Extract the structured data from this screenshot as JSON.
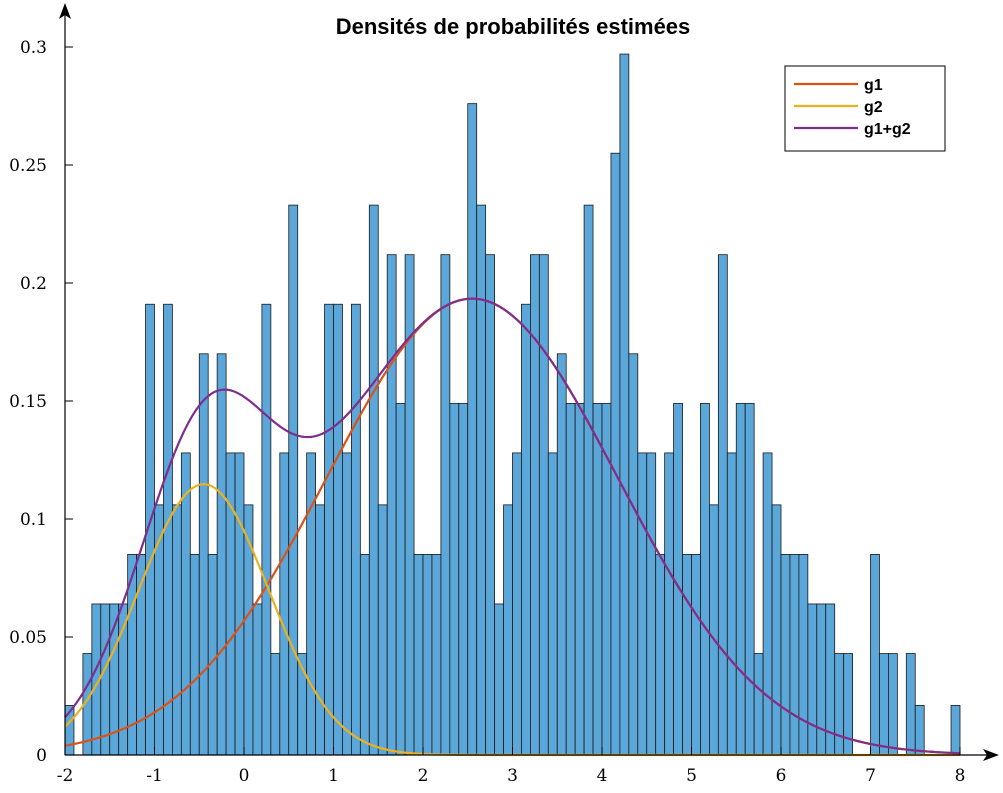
{
  "chart_data": {
    "type": "bar",
    "title": "Densités de probabilités estimées",
    "xlabel": "",
    "ylabel": "",
    "xlim": [
      -2,
      8
    ],
    "ylim": [
      0,
      0.3
    ],
    "x_ticks": [
      "-2",
      "-1",
      "0",
      "1",
      "2",
      "3",
      "4",
      "5",
      "6",
      "7",
      "8"
    ],
    "y_ticks": [
      "0",
      "0.05",
      "0.1",
      "0.15",
      "0.2",
      "0.25",
      "0.3"
    ],
    "grid": false,
    "legend_position": "top-right",
    "colors": {
      "bars": "#5ba7d9",
      "bar_edge": "#1a1a1a",
      "g1": "#d95319",
      "g2": "#edb120",
      "g1+g2": "#7e2f8e"
    },
    "histogram": {
      "bin_width": 0.1,
      "first_bin_start": -2.0,
      "densities": [
        0.021,
        0.0,
        0.043,
        0.064,
        0.064,
        0.064,
        0.064,
        0.085,
        0.085,
        0.191,
        0.106,
        0.191,
        0.106,
        0.128,
        0.085,
        0.17,
        0.085,
        0.17,
        0.128,
        0.128,
        0.106,
        0.064,
        0.191,
        0.043,
        0.128,
        0.233,
        0.043,
        0.128,
        0.106,
        0.191,
        0.191,
        0.128,
        0.191,
        0.085,
        0.233,
        0.106,
        0.212,
        0.149,
        0.212,
        0.085,
        0.085,
        0.085,
        0.212,
        0.149,
        0.149,
        0.276,
        0.233,
        0.212,
        0.064,
        0.106,
        0.128,
        0.191,
        0.212,
        0.212,
        0.128,
        0.17,
        0.149,
        0.149,
        0.233,
        0.149,
        0.149,
        0.255,
        0.297,
        0.17,
        0.128,
        0.128,
        0.085,
        0.128,
        0.149,
        0.085,
        0.085,
        0.149,
        0.106,
        0.212,
        0.128,
        0.149,
        0.149,
        0.043,
        0.128,
        0.106,
        0.085,
        0.085,
        0.085,
        0.064,
        0.064,
        0.064,
        0.043,
        0.043,
        0.0,
        0.0,
        0.085,
        0.043,
        0.043,
        0.0,
        0.043,
        0.021,
        0.0,
        0.0,
        0.0,
        0.021,
        0.0,
        0.0,
        0.0,
        0.0,
        0.0,
        0.0,
        0.0,
        0.0,
        0.0,
        0.0
      ]
    },
    "series": [
      {
        "name": "g1",
        "type": "line",
        "weight": 0.79,
        "mean": 2.55,
        "sd": 1.63
      },
      {
        "name": "g2",
        "type": "line",
        "weight": 0.21,
        "mean": -0.45,
        "sd": 0.73
      },
      {
        "name": "g1+g2",
        "type": "line",
        "components": [
          "g1",
          "g2"
        ]
      }
    ]
  }
}
